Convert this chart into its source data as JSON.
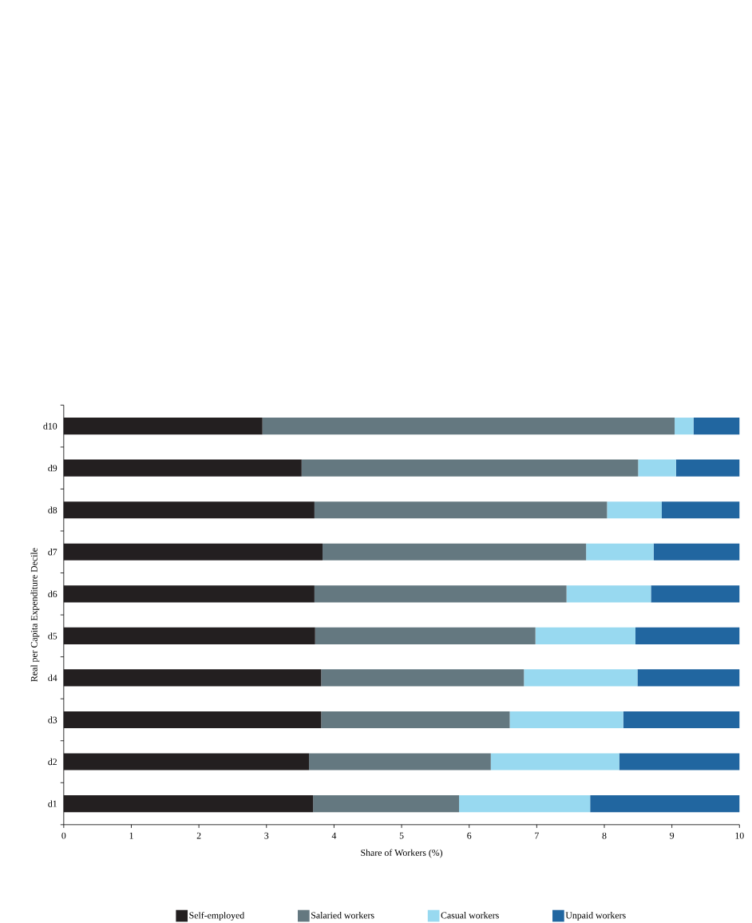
{
  "chart_data": {
    "type": "bar",
    "orientation": "horizontal",
    "stacked": true,
    "xlabel": "Share of Workers (%)",
    "ylabel": "Real per Capita Expenditure Decile",
    "categories": [
      "d10",
      "d9",
      "d8",
      "d7",
      "d6",
      "d5",
      "d4",
      "d3",
      "d2",
      "d1"
    ],
    "series": [
      {
        "name": "Self-employed",
        "color": "#231f20",
        "values": [
          2.94,
          3.52,
          3.71,
          3.83,
          3.71,
          3.72,
          3.81,
          3.81,
          3.63,
          3.69
        ]
      },
      {
        "name": "Salaried workers",
        "color": "#647880",
        "values": [
          6.1,
          4.98,
          4.33,
          3.9,
          3.73,
          3.26,
          3.0,
          2.79,
          2.69,
          2.16
        ]
      },
      {
        "name": "Casual workers",
        "color": "#98d9f0",
        "values": [
          0.28,
          0.56,
          0.81,
          1.0,
          1.25,
          1.48,
          1.68,
          1.68,
          1.9,
          1.94
        ]
      },
      {
        "name": "Unpaid workers",
        "color": "#2166a0",
        "values": [
          0.68,
          0.94,
          1.15,
          1.27,
          1.31,
          1.54,
          1.51,
          1.72,
          1.78,
          2.21
        ]
      }
    ],
    "xlim": [
      0,
      10
    ],
    "xticks": [
      0,
      1,
      2,
      3,
      4,
      5,
      6,
      7,
      8,
      9,
      10
    ],
    "grid": false,
    "legend": "bottom"
  }
}
